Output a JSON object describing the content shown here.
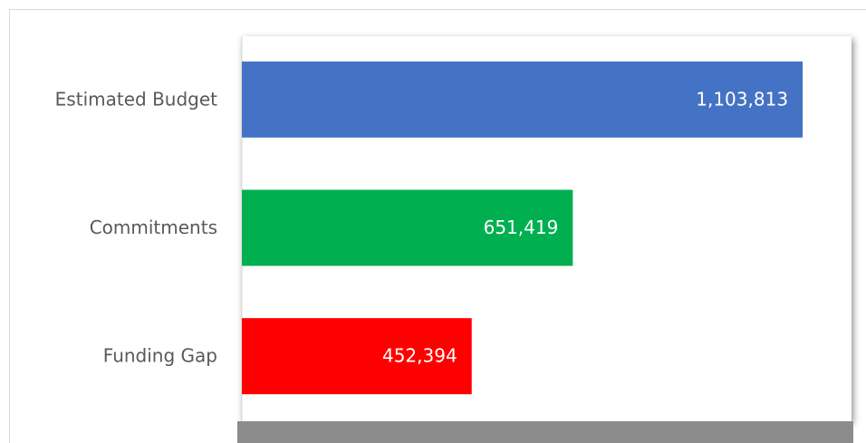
{
  "chart_data": {
    "type": "bar",
    "orientation": "horizontal",
    "categories": [
      "Estimated Budget",
      "Commitments",
      "Funding Gap"
    ],
    "values": [
      1103813,
      651419,
      452394
    ],
    "value_labels": [
      "1,103,813",
      "651,419",
      "452,394"
    ],
    "colors": [
      "#4472c4",
      "#00b050",
      "#ff0000"
    ],
    "xlim": [
      0,
      1200000
    ]
  }
}
